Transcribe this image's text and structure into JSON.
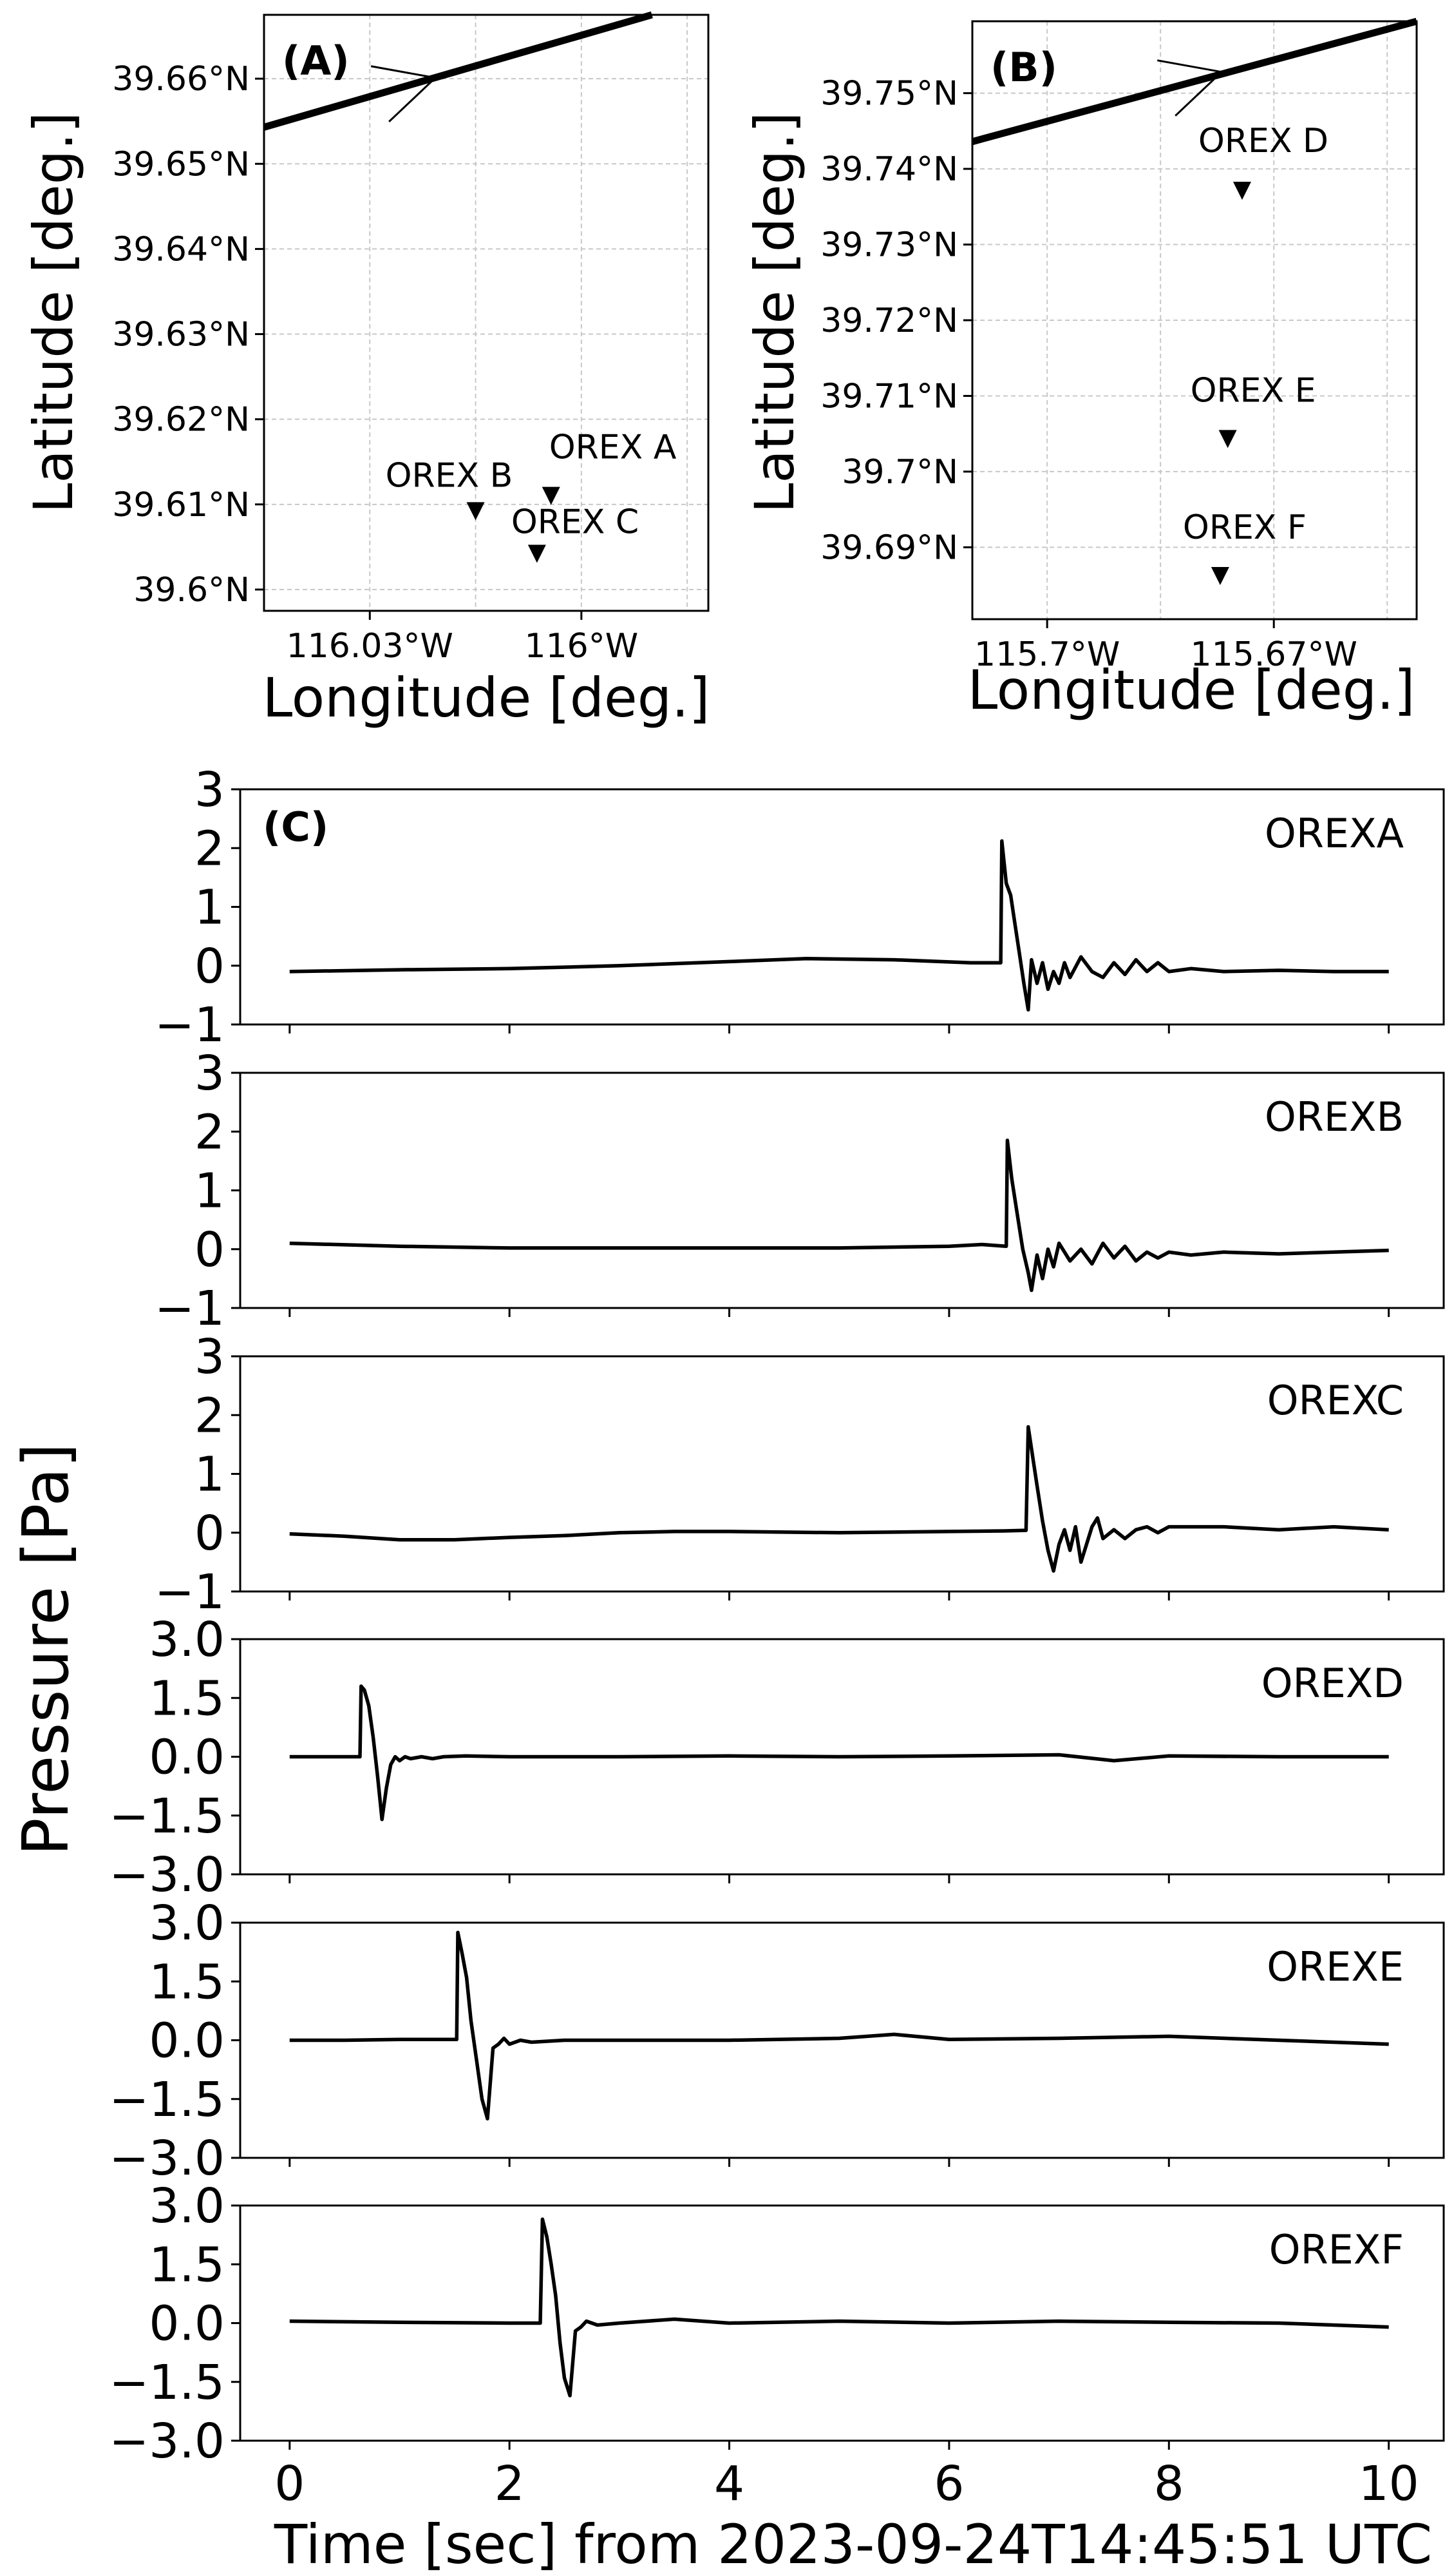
{
  "chart_data": [
    {
      "type": "map",
      "panel_label": "(A)",
      "xlabel": "Longitude [deg.]",
      "ylabel": "Latitude [deg.]",
      "xlim": [
        -116.045,
        -115.982
      ],
      "ylim": [
        39.5975,
        39.6675
      ],
      "x_ticks": [
        {
          "value": -116.03,
          "label": "116.03°W"
        },
        {
          "value": -116.0,
          "label": "116°W"
        }
      ],
      "x_grid": [
        -116.03,
        -116.015,
        -116.0,
        -115.985
      ],
      "y_ticks": [
        {
          "value": 39.6,
          "label": "39.6°N"
        },
        {
          "value": 39.61,
          "label": "39.61°N"
        },
        {
          "value": 39.62,
          "label": "39.62°N"
        },
        {
          "value": 39.63,
          "label": "39.63°N"
        },
        {
          "value": 39.64,
          "label": "39.64°N"
        },
        {
          "value": 39.65,
          "label": "39.65°N"
        },
        {
          "value": 39.66,
          "label": "39.66°N"
        }
      ],
      "trajectory": [
        [
          -116.045,
          39.6543
        ],
        [
          -115.99,
          39.6675
        ]
      ],
      "trajectory_marker": {
        "lon": -116.0207,
        "lat": 39.6601,
        "angle_deg": 40
      },
      "stations": [
        {
          "name": "OREX A",
          "lon": -116.0043,
          "lat": 39.611,
          "label_dx": -3,
          "label_dy": -58,
          "anchor": "start"
        },
        {
          "name": "OREX B",
          "lon": -116.015,
          "lat": 39.6092,
          "label_dx": -140,
          "label_dy": -38,
          "anchor": "start"
        },
        {
          "name": "OREX C",
          "lon": -116.0063,
          "lat": 39.6042,
          "label_dx": -40,
          "label_dy": -32,
          "anchor": "start"
        }
      ]
    },
    {
      "type": "map",
      "panel_label": "(B)",
      "xlabel": "Longitude [deg.]",
      "ylabel": "Latitude [deg.]",
      "xlim": [
        -115.7099,
        -115.6511
      ],
      "ylim": [
        39.6805,
        39.7595
      ],
      "x_ticks": [
        {
          "value": -115.7,
          "label": "115.7°W"
        },
        {
          "value": -115.67,
          "label": "115.67°W"
        }
      ],
      "x_grid": [
        -115.7,
        -115.685,
        -115.67,
        -115.655
      ],
      "y_ticks": [
        {
          "value": 39.69,
          "label": "39.69°N"
        },
        {
          "value": 39.7,
          "label": "39.7°N"
        },
        {
          "value": 39.71,
          "label": "39.71°N"
        },
        {
          "value": 39.72,
          "label": "39.72°N"
        },
        {
          "value": 39.73,
          "label": "39.73°N"
        },
        {
          "value": 39.74,
          "label": "39.74°N"
        },
        {
          "value": 39.75,
          "label": "39.75°N"
        }
      ],
      "trajectory": [
        [
          -115.7099,
          39.7436
        ],
        [
          -115.6511,
          39.7595
        ]
      ],
      "trajectory_marker": {
        "lon": -115.6769,
        "lat": 39.7528,
        "angle_deg": 40
      },
      "stations": [
        {
          "name": "OREX D",
          "lon": -115.6742,
          "lat": 39.7371,
          "label_dx": -68,
          "label_dy": -60,
          "anchor": "start"
        },
        {
          "name": "OREX E",
          "lon": -115.6761,
          "lat": 39.7043,
          "label_dx": -58,
          "label_dy": -58,
          "anchor": "start"
        },
        {
          "name": "OREX F",
          "lon": -115.6771,
          "lat": 39.6862,
          "label_dx": -58,
          "label_dy": -58,
          "anchor": "start"
        }
      ]
    },
    {
      "type": "line",
      "panel_label": "(C)",
      "xlabel": "Time [sec] from 2023-09-24T14:45:51 UTC",
      "ylabel": "Pressure [Pa]",
      "xlim": [
        -0.45,
        10.5
      ],
      "x_ticks": [
        0,
        2,
        4,
        6,
        8,
        10
      ],
      "x_tick_labels": [
        "0",
        "2",
        "4",
        "6",
        "8",
        "10"
      ],
      "series": [
        {
          "name": "OREXA",
          "ylim": [
            -1,
            3
          ],
          "y_ticks": [
            -1,
            0,
            1,
            2,
            3
          ],
          "y_tick_labels": [
            "−1",
            "0",
            "1",
            "2",
            "3"
          ],
          "x": [
            0,
            1,
            2,
            3,
            4,
            4.7,
            5.5,
            6.2,
            6.47,
            6.48,
            6.52,
            6.56,
            6.6,
            6.64,
            6.68,
            6.72,
            6.75,
            6.8,
            6.85,
            6.9,
            6.95,
            7.0,
            7.05,
            7.1,
            7.2,
            7.3,
            7.4,
            7.5,
            7.6,
            7.7,
            7.8,
            7.9,
            8.0,
            8.2,
            8.5,
            9.0,
            9.5,
            10.0
          ],
          "y": [
            -0.1,
            -0.07,
            -0.05,
            0.0,
            0.07,
            0.12,
            0.1,
            0.05,
            0.05,
            2.12,
            1.4,
            1.2,
            0.7,
            0.2,
            -0.3,
            -0.75,
            0.1,
            -0.3,
            0.05,
            -0.4,
            -0.1,
            -0.3,
            0.05,
            -0.2,
            0.15,
            -0.1,
            -0.2,
            0.05,
            -0.15,
            0.1,
            -0.1,
            0.05,
            -0.1,
            -0.05,
            -0.1,
            -0.08,
            -0.1,
            -0.1
          ]
        },
        {
          "name": "OREXB",
          "ylim": [
            -1,
            3
          ],
          "y_ticks": [
            -1,
            0,
            1,
            2,
            3
          ],
          "y_tick_labels": [
            "−1",
            "0",
            "1",
            "2",
            "3"
          ],
          "x": [
            0,
            1,
            2,
            3,
            4,
            5,
            6.0,
            6.3,
            6.52,
            6.53,
            6.57,
            6.62,
            6.67,
            6.72,
            6.75,
            6.8,
            6.85,
            6.9,
            6.95,
            7.0,
            7.1,
            7.2,
            7.3,
            7.4,
            7.5,
            7.6,
            7.7,
            7.8,
            7.9,
            8.0,
            8.2,
            8.5,
            9.0,
            9.5,
            10.0
          ],
          "y": [
            0.1,
            0.05,
            0.02,
            0.02,
            0.02,
            0.02,
            0.05,
            0.08,
            0.05,
            1.85,
            1.2,
            0.6,
            0.0,
            -0.4,
            -0.7,
            -0.1,
            -0.5,
            0.0,
            -0.3,
            0.1,
            -0.2,
            0.0,
            -0.25,
            0.1,
            -0.15,
            0.05,
            -0.2,
            -0.05,
            -0.15,
            -0.05,
            -0.1,
            -0.05,
            -0.08,
            -0.05,
            -0.02
          ]
        },
        {
          "name": "OREXC",
          "ylim": [
            -1,
            3
          ],
          "y_ticks": [
            -1,
            0,
            1,
            2,
            3
          ],
          "y_tick_labels": [
            "−1",
            "0",
            "1",
            "2",
            "3"
          ],
          "x": [
            0,
            0.5,
            1,
            1.5,
            2,
            2.5,
            3,
            3.5,
            4,
            5,
            6,
            6.5,
            6.7,
            6.72,
            6.76,
            6.8,
            6.85,
            6.9,
            6.95,
            7.0,
            7.05,
            7.1,
            7.15,
            7.2,
            7.25,
            7.3,
            7.35,
            7.4,
            7.5,
            7.6,
            7.7,
            7.8,
            7.9,
            8.0,
            8.2,
            8.5,
            9.0,
            9.5,
            10.0
          ],
          "y": [
            -0.02,
            -0.06,
            -0.12,
            -0.12,
            -0.08,
            -0.05,
            0.0,
            0.02,
            0.02,
            0.0,
            0.02,
            0.03,
            0.04,
            1.8,
            1.3,
            0.8,
            0.2,
            -0.3,
            -0.65,
            -0.2,
            0.05,
            -0.3,
            0.1,
            -0.5,
            -0.2,
            0.1,
            0.25,
            -0.1,
            0.05,
            -0.1,
            0.05,
            0.1,
            0.0,
            0.1,
            0.1,
            0.1,
            0.05,
            0.1,
            0.05
          ]
        },
        {
          "name": "OREXD",
          "ylim": [
            -3,
            3
          ],
          "y_ticks": [
            -3,
            -1.5,
            0,
            1.5,
            3
          ],
          "y_tick_labels": [
            "−3.0",
            "−1.5",
            "0.0",
            "1.5",
            "3.0"
          ],
          "x": [
            0,
            0.3,
            0.64,
            0.65,
            0.68,
            0.72,
            0.76,
            0.8,
            0.84,
            0.88,
            0.92,
            0.96,
            1.0,
            1.05,
            1.1,
            1.2,
            1.3,
            1.4,
            1.6,
            2.0,
            2.5,
            3,
            4,
            5,
            6,
            7,
            7.5,
            8,
            9,
            10
          ],
          "y": [
            0,
            0,
            0,
            1.8,
            1.7,
            1.3,
            0.5,
            -0.5,
            -1.6,
            -0.8,
            -0.2,
            0.0,
            -0.1,
            0.0,
            -0.05,
            0.0,
            -0.05,
            0.0,
            0.02,
            0.0,
            0.0,
            0.0,
            0.02,
            0.0,
            0.02,
            0.05,
            -0.1,
            0.02,
            0.0,
            0.0
          ]
        },
        {
          "name": "OREXE",
          "ylim": [
            -3,
            3
          ],
          "y_ticks": [
            -3,
            -1.5,
            0,
            1.5,
            3
          ],
          "y_tick_labels": [
            "−3.0",
            "−1.5",
            "0.0",
            "1.5",
            "3.0"
          ],
          "x": [
            0,
            0.5,
            1.0,
            1.52,
            1.53,
            1.57,
            1.61,
            1.65,
            1.7,
            1.75,
            1.8,
            1.85,
            1.9,
            1.95,
            2.0,
            2.1,
            2.2,
            2.5,
            3,
            4,
            5,
            5.5,
            6,
            7,
            8,
            9,
            10
          ],
          "y": [
            0,
            0,
            0.02,
            0.02,
            2.75,
            2.2,
            1.6,
            0.5,
            -0.5,
            -1.5,
            -2.0,
            -0.2,
            -0.1,
            0.05,
            -0.1,
            0.0,
            -0.05,
            0.0,
            0.0,
            0.0,
            0.05,
            0.15,
            0.02,
            0.05,
            0.1,
            0.0,
            -0.1
          ]
        },
        {
          "name": "OREXF",
          "ylim": [
            -3,
            3
          ],
          "y_ticks": [
            -3,
            -1.5,
            0,
            1.5,
            3
          ],
          "y_tick_labels": [
            "−3.0",
            "−1.5",
            "0.0",
            "1.5",
            "3.0"
          ],
          "x": [
            0,
            1,
            2,
            2.28,
            2.3,
            2.34,
            2.38,
            2.42,
            2.46,
            2.5,
            2.55,
            2.6,
            2.65,
            2.7,
            2.8,
            3.0,
            3.5,
            4,
            5,
            6,
            7,
            8,
            9,
            10
          ],
          "y": [
            0.05,
            0.02,
            0.0,
            0.0,
            2.65,
            2.2,
            1.5,
            0.7,
            -0.5,
            -1.4,
            -1.85,
            -0.2,
            -0.1,
            0.05,
            -0.05,
            0.0,
            0.1,
            0.0,
            0.05,
            0.0,
            0.05,
            0.02,
            0.0,
            -0.1
          ]
        }
      ]
    }
  ]
}
